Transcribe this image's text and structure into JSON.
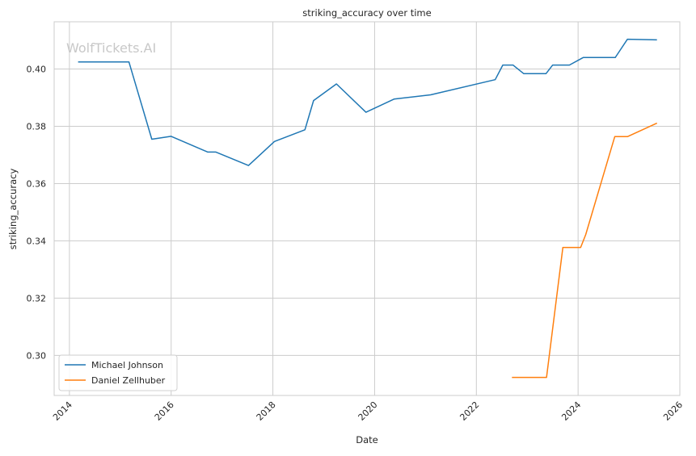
{
  "watermark": "WolfTickets.AI",
  "chart_data": {
    "type": "line",
    "title": "striking_accuracy over time",
    "xlabel": "Date",
    "ylabel": "striking_accuracy",
    "x_is_date": true,
    "xlim": [
      2013.7,
      2026.0
    ],
    "ylim": [
      0.286,
      0.4165
    ],
    "x_ticks": [
      2014,
      2016,
      2018,
      2020,
      2022,
      2024,
      2026
    ],
    "x_tick_labels": [
      "2014",
      "2016",
      "2018",
      "2020",
      "2022",
      "2024",
      "2026"
    ],
    "y_ticks": [
      0.3,
      0.32,
      0.34,
      0.36,
      0.38,
      0.4
    ],
    "y_tick_labels": [
      "0.30",
      "0.32",
      "0.34",
      "0.36",
      "0.38",
      "0.40"
    ],
    "grid": true,
    "legend_position": "lower-left",
    "series": [
      {
        "name": "Michael Johnson",
        "color": "#1f77b4",
        "points": [
          [
            2014.17,
            0.4025
          ],
          [
            2015.17,
            0.4025
          ],
          [
            2015.62,
            0.3755
          ],
          [
            2016.0,
            0.3765
          ],
          [
            2016.72,
            0.371
          ],
          [
            2016.88,
            0.371
          ],
          [
            2017.52,
            0.3663
          ],
          [
            2018.03,
            0.3747
          ],
          [
            2018.63,
            0.3788
          ],
          [
            2018.8,
            0.389
          ],
          [
            2019.25,
            0.3948
          ],
          [
            2019.83,
            0.3849
          ],
          [
            2020.38,
            0.3895
          ],
          [
            2021.1,
            0.391
          ],
          [
            2022.37,
            0.3963
          ],
          [
            2022.52,
            0.4014
          ],
          [
            2022.72,
            0.4014
          ],
          [
            2022.93,
            0.3984
          ],
          [
            2023.37,
            0.3984
          ],
          [
            2023.5,
            0.4014
          ],
          [
            2023.83,
            0.4014
          ],
          [
            2024.1,
            0.404
          ],
          [
            2024.73,
            0.404
          ],
          [
            2024.97,
            0.4104
          ],
          [
            2025.55,
            0.4102
          ]
        ]
      },
      {
        "name": "Daniel Zellhuber",
        "color": "#ff7f0e",
        "points": [
          [
            2022.7,
            0.2923
          ],
          [
            2023.38,
            0.2923
          ],
          [
            2023.7,
            0.3377
          ],
          [
            2024.05,
            0.3377
          ],
          [
            2024.15,
            0.3422
          ],
          [
            2024.72,
            0.3764
          ],
          [
            2024.97,
            0.3764
          ],
          [
            2025.55,
            0.3811
          ]
        ]
      }
    ]
  }
}
